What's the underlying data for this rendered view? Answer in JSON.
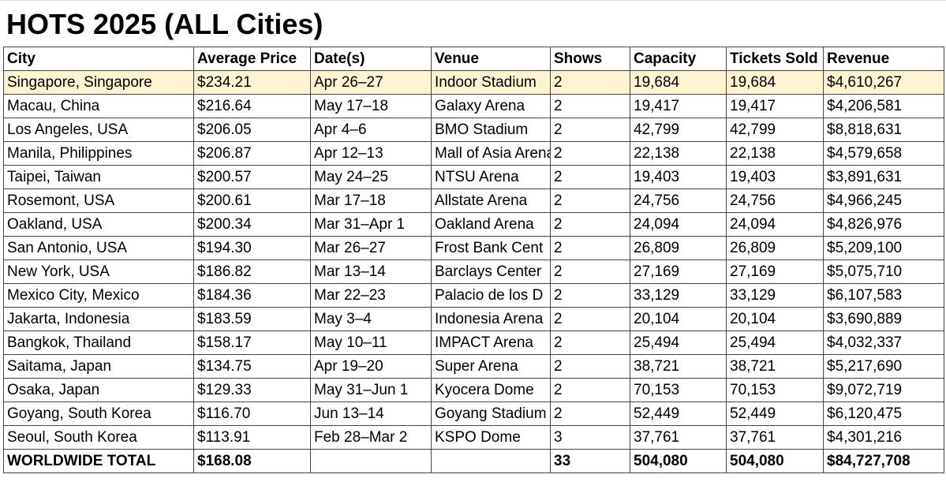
{
  "title": "HOTS 2025 (ALL Cities)",
  "table": {
    "header": [
      "City",
      "Average Price",
      "Date(s)",
      "Venue",
      "Shows",
      "Capacity",
      "Tickets Sold",
      "Revenue"
    ],
    "rows": [
      [
        "Singapore, Singapore",
        "$234.21",
        "Apr 26–27",
        "Indoor Stadium",
        "2",
        "19,684",
        "19,684",
        "$4,610,267"
      ],
      [
        "Macau, China",
        "$216.64",
        "May 17–18",
        "Galaxy Arena",
        "2",
        "19,417",
        "19,417",
        "$4,206,581"
      ],
      [
        "Los Angeles, USA",
        "$206.05",
        "Apr 4–6",
        "BMO Stadium",
        "2",
        "42,799",
        "42,799",
        "$8,818,631"
      ],
      [
        "Manila, Philippines",
        "$206.87",
        "Apr 12–13",
        "Mall of Asia Arena",
        "2",
        "22,138",
        "22,138",
        "$4,579,658"
      ],
      [
        "Taipei, Taiwan",
        "$200.57",
        "May 24–25",
        "NTSU Arena",
        "2",
        "19,403",
        "19,403",
        "$3,891,631"
      ],
      [
        "Rosemont, USA",
        "$200.61",
        "Mar 17–18",
        "Allstate Arena",
        "2",
        "24,756",
        "24,756",
        "$4,966,245"
      ],
      [
        "Oakland, USA",
        "$200.34",
        "Mar 31–Apr 1",
        "Oakland Arena",
        "2",
        "24,094",
        "24,094",
        "$4,826,976"
      ],
      [
        "San Antonio, USA",
        "$194.30",
        "Mar 26–27",
        "Frost Bank Cent",
        "2",
        "26,809",
        "26,809",
        "$5,209,100"
      ],
      [
        "New York, USA",
        "$186.82",
        "Mar 13–14",
        "Barclays Center",
        "2",
        "27,169",
        "27,169",
        "$5,075,710"
      ],
      [
        "Mexico City, Mexico",
        "$184.36",
        "Mar 22–23",
        "Palacio de los D",
        "2",
        "33,129",
        "33,129",
        "$6,107,583"
      ],
      [
        "Jakarta, Indonesia",
        "$183.59",
        "May 3–4",
        "Indonesia Arena",
        "2",
        "20,104",
        "20,104",
        "$3,690,889"
      ],
      [
        "Bangkok, Thailand",
        "$158.17",
        "May 10–11",
        "IMPACT Arena",
        "2",
        "25,494",
        "25,494",
        "$4,032,337"
      ],
      [
        "Saitama, Japan",
        "$134.75",
        "Apr 19–20",
        "Super Arena",
        "2",
        "38,721",
        "38,721",
        "$5,217,690"
      ],
      [
        "Osaka, Japan",
        "$129.33",
        "May 31–Jun 1",
        "Kyocera Dome",
        "2",
        "70,153",
        "70,153",
        "$9,072,719"
      ],
      [
        "Goyang, South Korea",
        "$116.70",
        "Jun 13–14",
        "Goyang Stadium",
        "2",
        "52,449",
        "52,449",
        "$6,120,475"
      ],
      [
        "Seoul, South Korea",
        "$113.91",
        "Feb 28–Mar 2",
        "KSPO Dome",
        "3",
        "37,761",
        "37,761",
        "$4,301,216"
      ]
    ],
    "total": [
      "WORLDWIDE TOTAL",
      "$168.08",
      "",
      "",
      "33",
      "504,080",
      "504,080",
      "$84,727,708"
    ]
  }
}
